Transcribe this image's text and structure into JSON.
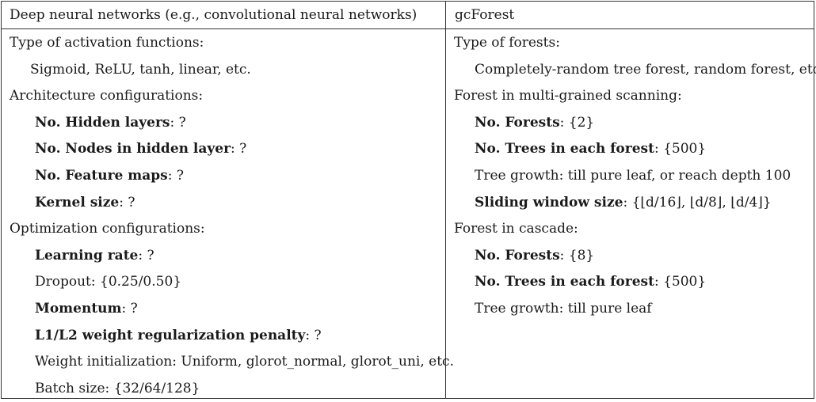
{
  "headers": {
    "left": "Deep neural networks (e.g., convolutional neural networks)",
    "right": "gcForest"
  },
  "left": [
    {
      "pre": "",
      "bold": "",
      "text": "Type of activation functions:",
      "level": 0
    },
    {
      "pre": "",
      "bold": "",
      "text": "Sigmoid, ReLU, tanh, linear, etc.",
      "level": 1
    },
    {
      "pre": "",
      "bold": "",
      "text": "Architecture configurations:",
      "level": 0
    },
    {
      "pre": "",
      "bold": "No. Hidden layers",
      "text": ": ?",
      "level": 2
    },
    {
      "pre": "",
      "bold": "No. Nodes in hidden layer",
      "text": ": ?",
      "level": 2
    },
    {
      "pre": "",
      "bold": "No. Feature maps",
      "text": ": ?",
      "level": 2
    },
    {
      "pre": "",
      "bold": "Kernel size",
      "text": ": ?",
      "level": 2
    },
    {
      "pre": "",
      "bold": "",
      "text": "Optimization configurations:",
      "level": 0
    },
    {
      "pre": "",
      "bold": "Learning rate",
      "text": ": ?",
      "level": 2
    },
    {
      "pre": "",
      "bold": "",
      "text": "Dropout: {0.25/0.50}",
      "level": 2
    },
    {
      "pre": "",
      "bold": "Momentum",
      "text": ": ?",
      "level": 2
    },
    {
      "pre": "",
      "bold": "L1/L2 weight regularization penalty",
      "text": ": ?",
      "level": 2
    },
    {
      "pre": "",
      "bold": "",
      "text": "Weight initialization: Uniform, glorot_normal, glorot_uni, etc.",
      "level": 2
    },
    {
      "pre": "",
      "bold": "",
      "text": "Batch size: {32/64/128}",
      "level": 2
    }
  ],
  "right": [
    {
      "pre": "",
      "bold": "",
      "text": "Type of forests:",
      "level": 0
    },
    {
      "pre": "",
      "bold": "",
      "text": "Completely-random tree forest, random forest, etc.",
      "level": 1
    },
    {
      "pre": "",
      "bold": "",
      "text": "Forest in multi-grained scanning:",
      "level": 0
    },
    {
      "pre": "",
      "bold": "No. Forests",
      "text": ": {2}",
      "level": 1
    },
    {
      "pre": "",
      "bold": "No. Trees in each forest",
      "text": ": {500}",
      "level": 1
    },
    {
      "pre": "",
      "bold": "",
      "text": "Tree growth: till pure leaf, or reach depth 100",
      "level": 1
    },
    {
      "pre": "",
      "bold": "Sliding window size",
      "text": ": {⌊d/16⌋, ⌊d/8⌋, ⌊d/4⌋}",
      "level": 1
    },
    {
      "pre": "",
      "bold": "",
      "text": "Forest in cascade:",
      "level": 0
    },
    {
      "pre": "",
      "bold": "No. Forests",
      "text": ": {8}",
      "level": 1
    },
    {
      "pre": "",
      "bold": "No. Trees in each forest",
      "text": ": {500}",
      "level": 1
    },
    {
      "pre": "",
      "bold": "",
      "text": "Tree growth: till pure leaf",
      "level": 1
    }
  ]
}
